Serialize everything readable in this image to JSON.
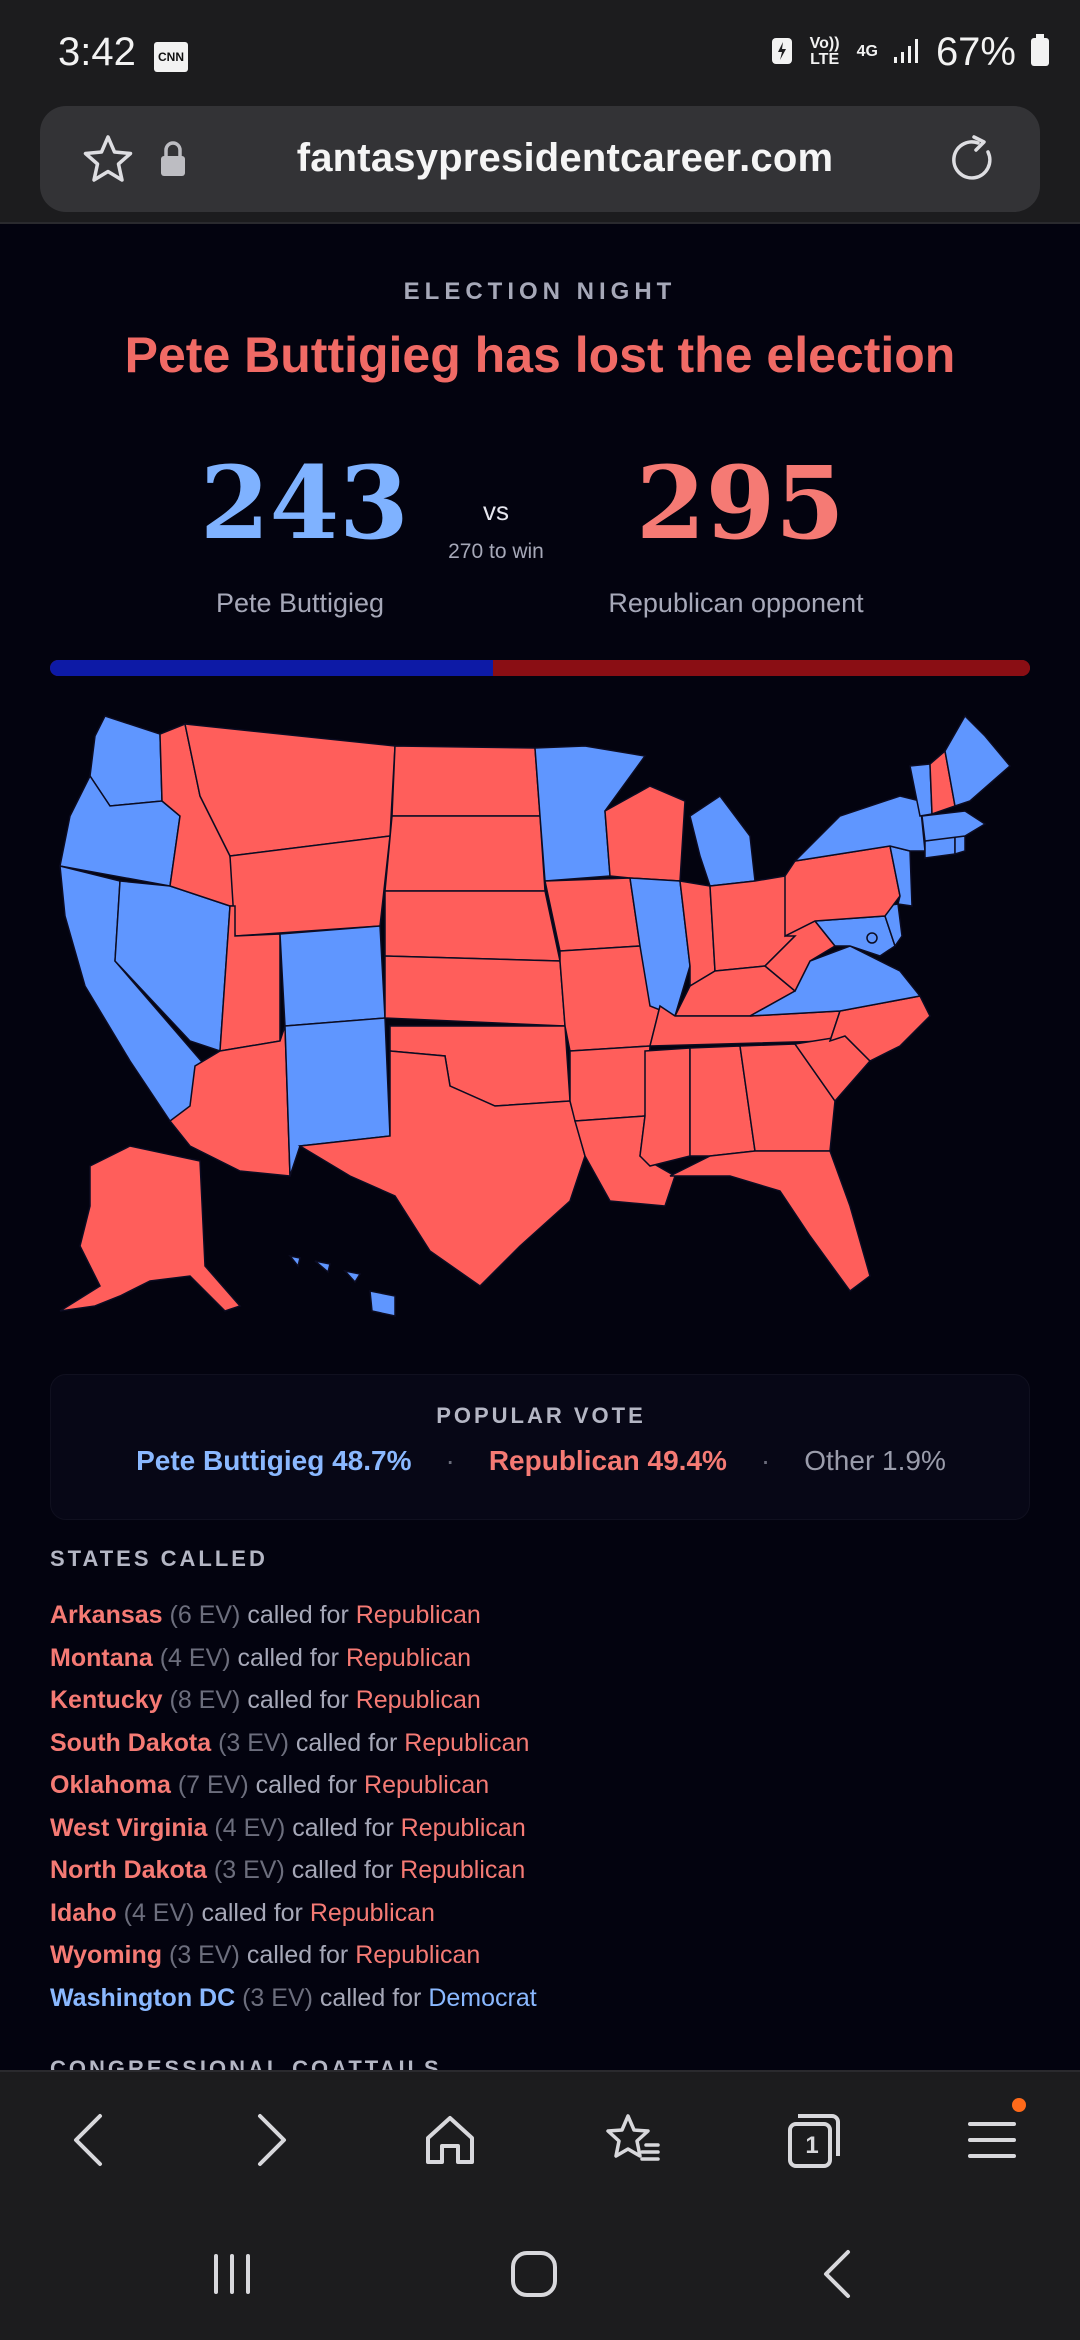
{
  "status_bar": {
    "time": "3:42",
    "carrier_icon": "CNN",
    "network_volte": "Vo)) LTE",
    "network_type": "4G",
    "battery_percent": "67%"
  },
  "browser": {
    "url": "fantasypresidentcareer.com",
    "tab_count": "1"
  },
  "election": {
    "eyebrow": "ELECTION NIGHT",
    "headline": "Pete Buttigieg has lost the election",
    "dem_ev": "243",
    "rep_ev": "295",
    "vs": "vs",
    "to_win": "270 to win",
    "dem_name": "Pete Buttigieg",
    "rep_name": "Republican opponent",
    "ev_split": {
      "dem": 243,
      "rep": 295
    }
  },
  "map": {
    "colors": {
      "dem": "#5f96ff",
      "rep": "#ff5e5b",
      "border": "#0c0c22"
    },
    "dem_states": [
      "WA",
      "OR",
      "CA",
      "NV",
      "CO",
      "NM",
      "MN",
      "IL",
      "MI",
      "VA",
      "MD",
      "DE",
      "NJ",
      "NY",
      "CT",
      "RI",
      "MA",
      "VT",
      "ME",
      "HI",
      "DC"
    ],
    "rep_states": [
      "AK",
      "ID",
      "MT",
      "WY",
      "ND",
      "SD",
      "NE",
      "KS",
      "OK",
      "TX",
      "UT",
      "AZ",
      "IA",
      "MO",
      "AR",
      "LA",
      "WI",
      "IN",
      "OH",
      "KY",
      "TN",
      "MS",
      "AL",
      "GA",
      "FL",
      "SC",
      "NC",
      "WV",
      "PA",
      "NH"
    ]
  },
  "popular_vote": {
    "title": "POPULAR VOTE",
    "dem": "Pete Buttigieg 48.7%",
    "rep": "Republican 49.4%",
    "other": "Other 1.9%",
    "separator": "·"
  },
  "states_called": {
    "title": "STATES CALLED",
    "called_for": "called for",
    "items": [
      {
        "state": "Arkansas",
        "ev": "(6 EV)",
        "winner": "Republican"
      },
      {
        "state": "Montana",
        "ev": "(4 EV)",
        "winner": "Republican"
      },
      {
        "state": "Kentucky",
        "ev": "(8 EV)",
        "winner": "Republican"
      },
      {
        "state": "South Dakota",
        "ev": "(3 EV)",
        "winner": "Republican"
      },
      {
        "state": "Oklahoma",
        "ev": "(7 EV)",
        "winner": "Republican"
      },
      {
        "state": "West Virginia",
        "ev": "(4 EV)",
        "winner": "Republican"
      },
      {
        "state": "North Dakota",
        "ev": "(3 EV)",
        "winner": "Republican"
      },
      {
        "state": "Idaho",
        "ev": "(4 EV)",
        "winner": "Republican"
      },
      {
        "state": "Wyoming",
        "ev": "(3 EV)",
        "winner": "Republican"
      },
      {
        "state": "Washington DC",
        "ev": "(3 EV)",
        "winner": "Democrat"
      }
    ]
  },
  "next_section": {
    "title": "CONGRESSIONAL COATTAILS"
  },
  "icons": {
    "bookmark": "star-icon",
    "secure": "lock-icon",
    "reload": "reload-icon",
    "back": "chevron-left-icon",
    "forward": "chevron-right-icon",
    "home": "home-icon",
    "bookmarks": "bookmarks-icon",
    "tabs": "tabs-icon",
    "menu": "menu-icon"
  }
}
